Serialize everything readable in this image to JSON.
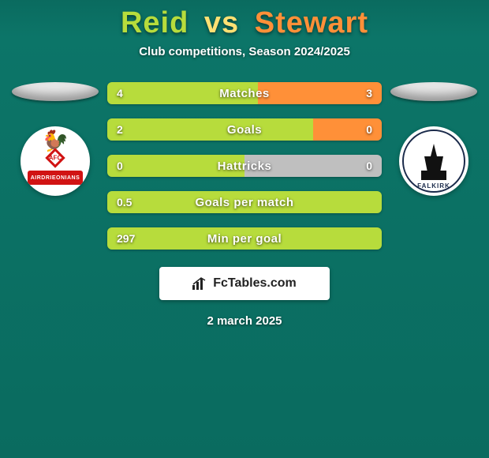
{
  "title": {
    "player1": "Reid",
    "vs": "vs",
    "player2": "Stewart",
    "player1_color": "#b7dc3c",
    "vs_color": "#ffe073",
    "player2_color": "#ff9038"
  },
  "subtitle": "Club competitions, Season 2024/2025",
  "player1": {
    "silhouette_color": "#e8e8e8",
    "team_abbrev": "AFC",
    "team_ribbon": "AIRDRIEONIANS"
  },
  "player2": {
    "silhouette_color": "#e8e8e8",
    "team_text": "FALKIRK"
  },
  "bar_colors": {
    "left": "#b7dc3c",
    "right": "#ff9038",
    "neutral": "#bfbfbf"
  },
  "stats": [
    {
      "label": "Matches",
      "left_val": "4",
      "right_val": "3",
      "left_pct": 55,
      "right_pct": 45,
      "right_neutral": false
    },
    {
      "label": "Goals",
      "left_val": "2",
      "right_val": "0",
      "left_pct": 75,
      "right_pct": 25,
      "right_neutral": false
    },
    {
      "label": "Hattricks",
      "left_val": "0",
      "right_val": "0",
      "left_pct": 50,
      "right_pct": 50,
      "right_neutral": true
    },
    {
      "label": "Goals per match",
      "left_val": "0.5",
      "right_val": "",
      "left_pct": 100,
      "right_pct": 0,
      "right_neutral": false
    },
    {
      "label": "Min per goal",
      "left_val": "297",
      "right_val": "",
      "left_pct": 100,
      "right_pct": 0,
      "right_neutral": false
    }
  ],
  "attribution": "FcTables.com",
  "date": "2 march 2025",
  "background_color": "#0a6b5f"
}
